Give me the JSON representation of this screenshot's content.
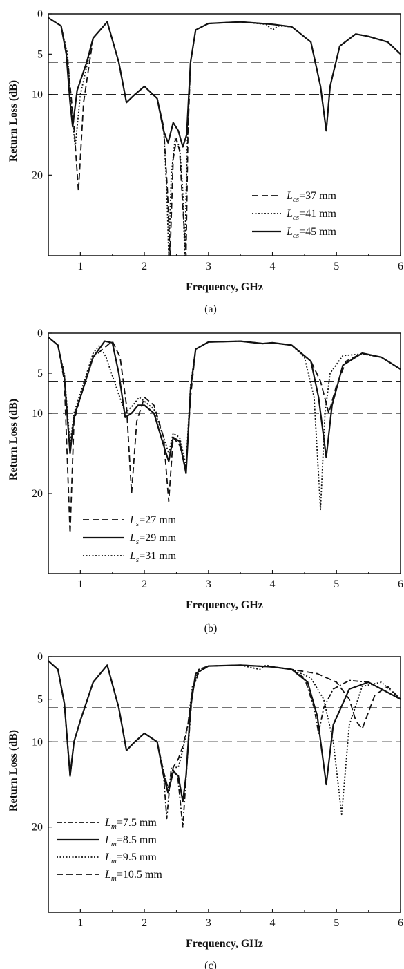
{
  "chart_data": [
    {
      "type": "line",
      "caption": "(a)",
      "xlabel": "Frequency, GHz",
      "ylabel": "Return Loss (dB)",
      "xlim": [
        0.5,
        6
      ],
      "ylim": [
        0,
        30
      ],
      "x_ticks": [
        "1",
        "2",
        "3",
        "4",
        "5",
        "6"
      ],
      "y_ticks": [
        "0",
        "5",
        "10",
        "20"
      ],
      "reference_lines": [
        6,
        10
      ],
      "legend_position": "bottom-right",
      "series": [
        {
          "name": "L_cs=37 mm",
          "label_main": "L",
          "label_sub": "cs",
          "label_rest": "=37 mm",
          "style": "dashed",
          "x": [
            0.5,
            0.7,
            0.8,
            0.9,
            0.97,
            1.05,
            1.2,
            1.42,
            1.6,
            1.72,
            1.85,
            2.0,
            2.2,
            2.3,
            2.36,
            2.4,
            2.45,
            2.5,
            2.55,
            2.6,
            2.65,
            2.68,
            2.72,
            2.8,
            3.0,
            3.5,
            4.0,
            4.3,
            4.6,
            4.75,
            4.84,
            4.9,
            5.05,
            5.3,
            5.5,
            5.8,
            6.0
          ],
          "y": [
            0.5,
            1.5,
            5.5,
            14.0,
            22.0,
            11.0,
            3.0,
            1.0,
            6.0,
            11.0,
            10.0,
            9.0,
            10.5,
            14.0,
            22.0,
            30.0,
            18.0,
            15.5,
            17.0,
            24.0,
            30.0,
            15.0,
            6.0,
            2.0,
            1.2,
            1.0,
            1.3,
            1.6,
            3.5,
            9.0,
            14.5,
            9.0,
            4.0,
            2.5,
            2.8,
            3.5,
            5.0
          ]
        },
        {
          "name": "L_cs=41 mm",
          "label_main": "L",
          "label_sub": "cs",
          "label_rest": "=41 mm",
          "style": "dotted",
          "x": [
            0.5,
            0.7,
            0.8,
            0.86,
            0.92,
            1.0,
            1.2,
            1.42,
            1.6,
            1.72,
            1.85,
            2.0,
            2.2,
            2.3,
            2.35,
            2.38,
            2.42,
            2.48,
            2.55,
            2.6,
            2.63,
            2.67,
            2.72,
            2.8,
            3.0,
            3.5,
            3.9,
            4.0,
            4.1,
            4.3,
            4.6,
            4.75,
            4.84,
            4.9,
            5.05,
            5.3,
            5.5,
            5.8,
            6.0
          ],
          "y": [
            0.5,
            1.5,
            5.0,
            12.0,
            16.5,
            10.0,
            3.0,
            1.0,
            6.0,
            11.0,
            10.0,
            9.0,
            10.5,
            14.0,
            22.0,
            30.0,
            20.0,
            15.5,
            16.5,
            22.0,
            30.0,
            16.0,
            6.0,
            2.0,
            1.2,
            1.0,
            1.3,
            2.0,
            1.5,
            1.6,
            3.5,
            9.0,
            14.5,
            9.0,
            4.0,
            2.5,
            2.8,
            3.5,
            5.0
          ]
        },
        {
          "name": "L_cs=45 mm",
          "label_main": "L",
          "label_sub": "cs",
          "label_rest": "=45 mm",
          "style": "solid",
          "x": [
            0.5,
            0.7,
            0.78,
            0.84,
            0.88,
            0.95,
            1.1,
            1.2,
            1.42,
            1.6,
            1.72,
            1.85,
            2.0,
            2.2,
            2.3,
            2.37,
            2.45,
            2.53,
            2.6,
            2.66,
            2.72,
            2.8,
            3.0,
            3.5,
            4.0,
            4.3,
            4.6,
            4.75,
            4.84,
            4.9,
            5.05,
            5.3,
            5.5,
            5.8,
            6.0
          ],
          "y": [
            0.5,
            1.5,
            5.0,
            11.0,
            14.0,
            9.5,
            6.0,
            3.0,
            1.0,
            6.0,
            11.0,
            10.0,
            9.0,
            10.5,
            14.5,
            16.0,
            13.5,
            14.5,
            16.5,
            15.0,
            6.0,
            2.0,
            1.2,
            1.0,
            1.3,
            1.6,
            3.5,
            9.0,
            14.5,
            9.0,
            4.0,
            2.5,
            2.8,
            3.5,
            5.0
          ]
        }
      ]
    },
    {
      "type": "line",
      "caption": "(b)",
      "xlabel": "Frequency, GHz",
      "ylabel": "Return Loss (dB)",
      "xlim": [
        0.5,
        6
      ],
      "ylim": [
        0,
        30
      ],
      "x_ticks": [
        "1",
        "2",
        "3",
        "4",
        "5",
        "6"
      ],
      "y_ticks": [
        "0",
        "5",
        "10",
        "20"
      ],
      "reference_lines": [
        6,
        10
      ],
      "legend_position": "bottom-left",
      "series": [
        {
          "name": "L_s=27 mm",
          "label_main": "L",
          "label_sub": "s",
          "label_rest": "=27 mm",
          "style": "dashed",
          "x": [
            0.5,
            0.65,
            0.75,
            0.84,
            0.9,
            1.0,
            1.2,
            1.38,
            1.5,
            1.62,
            1.72,
            1.8,
            1.88,
            2.0,
            2.15,
            2.3,
            2.38,
            2.45,
            2.55,
            2.65,
            2.72,
            2.8,
            3.0,
            3.5,
            3.85,
            4.0,
            4.3,
            4.6,
            4.75,
            4.88,
            5.0,
            5.15,
            5.4,
            5.7,
            6.0
          ],
          "y": [
            0.5,
            1.5,
            6.0,
            25.0,
            11.0,
            8.0,
            3.0,
            1.8,
            1.0,
            3.0,
            9.0,
            20.0,
            11.0,
            8.0,
            9.0,
            13.0,
            21.0,
            13.0,
            14.0,
            17.0,
            8.0,
            2.0,
            1.1,
            1.0,
            1.3,
            1.2,
            1.5,
            3.5,
            6.0,
            10.0,
            6.5,
            3.5,
            2.5,
            3.0,
            4.5
          ]
        },
        {
          "name": "L_s=29 mm",
          "label_main": "L",
          "label_sub": "s",
          "label_rest": "=29 mm",
          "style": "solid",
          "x": [
            0.5,
            0.65,
            0.75,
            0.84,
            0.9,
            1.0,
            1.2,
            1.38,
            1.5,
            1.6,
            1.7,
            1.8,
            1.9,
            2.0,
            2.15,
            2.3,
            2.38,
            2.45,
            2.55,
            2.65,
            2.72,
            2.8,
            3.0,
            3.5,
            3.85,
            4.0,
            4.3,
            4.6,
            4.72,
            4.84,
            4.93,
            5.1,
            5.4,
            5.7,
            6.0
          ],
          "y": [
            0.5,
            1.5,
            5.5,
            15.0,
            10.5,
            8.0,
            3.0,
            1.0,
            1.2,
            5.0,
            10.5,
            10.0,
            9.0,
            9.0,
            10.0,
            14.0,
            16.0,
            13.0,
            13.5,
            17.5,
            7.0,
            2.0,
            1.1,
            1.0,
            1.3,
            1.2,
            1.5,
            3.5,
            8.0,
            15.5,
            9.0,
            4.0,
            2.5,
            3.0,
            4.5
          ]
        },
        {
          "name": "L_s=31 mm",
          "label_main": "L",
          "label_sub": "s",
          "label_rest": "=31 mm",
          "style": "dotted",
          "x": [
            0.5,
            0.65,
            0.75,
            0.84,
            0.9,
            1.0,
            1.2,
            1.3,
            1.4,
            1.55,
            1.7,
            1.82,
            1.92,
            2.0,
            2.15,
            2.3,
            2.38,
            2.45,
            2.55,
            2.65,
            2.72,
            2.8,
            3.0,
            3.5,
            3.85,
            4.0,
            4.3,
            4.5,
            4.65,
            4.75,
            4.82,
            4.9,
            5.1,
            5.4,
            5.7,
            6.0
          ],
          "y": [
            0.5,
            1.5,
            5.0,
            14.0,
            10.0,
            7.5,
            2.5,
            1.5,
            3.0,
            6.5,
            10.0,
            9.0,
            8.0,
            8.5,
            9.5,
            13.0,
            15.0,
            12.5,
            13.0,
            16.5,
            6.5,
            2.0,
            1.1,
            1.0,
            1.3,
            1.2,
            1.5,
            3.0,
            8.0,
            22.0,
            10.0,
            5.0,
            2.8,
            2.6,
            3.0,
            4.5
          ]
        }
      ]
    },
    {
      "type": "line",
      "caption": "(c)",
      "xlabel": "Frequency, GHz",
      "ylabel": "Return Loss (dB)",
      "xlim": [
        0.5,
        6
      ],
      "ylim": [
        0,
        30
      ],
      "x_ticks": [
        "1",
        "2",
        "3",
        "4",
        "5",
        "6"
      ],
      "y_ticks": [
        "0",
        "5",
        "10",
        "20"
      ],
      "reference_lines": [
        6,
        10
      ],
      "legend_position": "bottom-left",
      "series": [
        {
          "name": "L_m=7.5 mm",
          "label_main": "L",
          "label_sub": "m",
          "label_rest": "=7.5 mm",
          "style": "dashdot",
          "x": [
            0.5,
            0.65,
            0.75,
            0.84,
            0.9,
            1.0,
            1.2,
            1.42,
            1.6,
            1.72,
            1.85,
            2.0,
            2.2,
            2.3,
            2.35,
            2.42,
            2.52,
            2.6,
            2.68,
            2.75,
            2.85,
            3.0,
            3.5,
            4.0,
            4.3,
            4.5,
            4.65,
            4.72,
            4.8,
            4.95,
            5.2,
            5.5,
            6.0
          ],
          "y": [
            0.5,
            1.5,
            5.5,
            14.0,
            10.0,
            7.5,
            3.0,
            1.0,
            6.0,
            11.0,
            10.0,
            9.0,
            10.0,
            14.0,
            19.0,
            13.0,
            14.0,
            20.0,
            11.0,
            4.0,
            1.8,
            1.1,
            1.0,
            1.2,
            1.5,
            2.5,
            6.0,
            9.0,
            6.0,
            3.8,
            2.8,
            3.0,
            5.0
          ]
        },
        {
          "name": "L_m=8.5 mm",
          "label_main": "L",
          "label_sub": "m",
          "label_rest": "=8.5 mm",
          "style": "solid",
          "x": [
            0.5,
            0.65,
            0.75,
            0.84,
            0.9,
            1.0,
            1.2,
            1.42,
            1.6,
            1.72,
            1.85,
            2.0,
            2.2,
            2.3,
            2.37,
            2.45,
            2.53,
            2.6,
            2.65,
            2.72,
            2.8,
            3.0,
            3.5,
            4.0,
            4.3,
            4.55,
            4.7,
            4.84,
            4.95,
            5.2,
            5.5,
            6.0
          ],
          "y": [
            0.5,
            1.5,
            5.5,
            14.0,
            10.0,
            7.5,
            3.0,
            1.0,
            6.0,
            11.0,
            10.0,
            9.0,
            10.0,
            14.0,
            16.0,
            13.5,
            14.0,
            17.0,
            14.0,
            6.0,
            2.0,
            1.1,
            1.0,
            1.2,
            1.5,
            3.0,
            7.0,
            15.0,
            8.0,
            3.8,
            3.0,
            5.0
          ]
        },
        {
          "name": "L_m=9.5 mm",
          "label_main": "L",
          "label_sub": "m",
          "label_rest": "=9.5 mm",
          "style": "dotted",
          "x": [
            0.5,
            0.65,
            0.75,
            0.84,
            0.9,
            1.0,
            1.2,
            1.42,
            1.6,
            1.72,
            1.85,
            2.0,
            2.2,
            2.3,
            2.37,
            2.45,
            2.53,
            2.6,
            2.68,
            2.75,
            2.85,
            3.0,
            3.5,
            3.8,
            3.9,
            4.0,
            4.3,
            4.6,
            4.8,
            4.95,
            5.08,
            5.2,
            5.4,
            5.7,
            6.0
          ],
          "y": [
            0.5,
            1.5,
            5.5,
            14.0,
            10.0,
            7.5,
            3.0,
            1.0,
            6.0,
            11.0,
            10.0,
            9.0,
            10.0,
            13.5,
            16.0,
            13.0,
            13.0,
            11.0,
            8.0,
            3.5,
            1.5,
            1.1,
            1.0,
            1.5,
            1.0,
            1.2,
            1.5,
            2.5,
            5.0,
            10.0,
            18.5,
            8.0,
            3.5,
            3.0,
            5.0
          ]
        },
        {
          "name": "L_m=10.5 mm",
          "label_main": "L",
          "label_sub": "m",
          "label_rest": "=10.5 mm",
          "style": "dashed",
          "x": [
            0.5,
            0.65,
            0.75,
            0.84,
            0.9,
            1.0,
            1.2,
            1.42,
            1.6,
            1.72,
            1.85,
            2.0,
            2.2,
            2.3,
            2.37,
            2.45,
            2.53,
            2.6,
            2.68,
            2.75,
            2.85,
            3.0,
            3.5,
            4.0,
            4.3,
            4.7,
            5.0,
            5.2,
            5.3,
            5.4,
            5.5,
            5.6,
            5.8,
            6.0
          ],
          "y": [
            0.5,
            1.5,
            5.5,
            14.0,
            10.0,
            7.5,
            3.0,
            1.0,
            6.0,
            11.0,
            10.0,
            9.0,
            10.0,
            13.5,
            15.5,
            13.0,
            12.0,
            10.5,
            8.0,
            4.0,
            1.5,
            1.1,
            1.0,
            1.2,
            1.5,
            2.0,
            3.0,
            5.0,
            7.5,
            8.5,
            6.5,
            4.5,
            3.5,
            5.0
          ]
        }
      ]
    }
  ]
}
